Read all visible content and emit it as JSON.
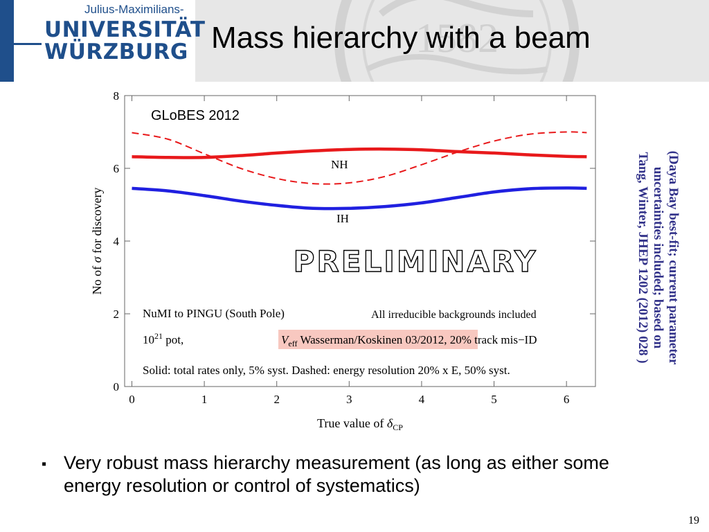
{
  "header": {
    "logo": {
      "top_text": "Julius-Maximilians-",
      "line1": "UNIVERSITÄT",
      "line2": "WÜRZBURG"
    },
    "seal_text": "1582",
    "title": "Mass hierarchy with a beam"
  },
  "plot": {
    "globes_label": "GLoBES 2012",
    "nh_label": "NH",
    "ih_label": "IH",
    "preliminary": "PRELIMINARY",
    "setup": "NuMI to PINGU (South Pole)",
    "backgrounds": "All irreducible backgrounds included",
    "pot_prefix": "10",
    "pot_exp": "21",
    "pot_suffix": " pot,",
    "veff_v": "V",
    "veff_sub": "eff",
    "veff_text": " Wasserman/Koskinen 03/2012,",
    "mis_id": " 20% track mis−ID",
    "solid_dashed": "Solid: total rates only, 5% syst. Dashed: energy resolution 20% x E, 50% syst.",
    "xlabel_prefix": "True value of ",
    "xlabel_symbol": "δ",
    "xlabel_sub": "CP",
    "ylabel_prefix": "No of ",
    "ylabel_symbol": "σ",
    "ylabel_suffix": " for discovery",
    "colors": {
      "nh": "#e8191b",
      "ih": "#2020e0",
      "highlight": "#f8c8c0"
    }
  },
  "chart_data": {
    "type": "line",
    "xlabel": "True value of δCP",
    "ylabel": "No of σ for discovery",
    "xlim": [
      -0.1,
      6.4
    ],
    "ylim": [
      0,
      8
    ],
    "xticks": [
      0,
      1,
      2,
      3,
      4,
      5,
      6
    ],
    "yticks": [
      0,
      2,
      4,
      6,
      8
    ],
    "x": [
      0,
      0.5,
      1,
      1.5,
      2,
      2.5,
      3,
      3.5,
      4,
      4.5,
      5,
      5.5,
      6,
      6.28
    ],
    "series": [
      {
        "name": "NH",
        "style": "solid",
        "values": [
          6.32,
          6.3,
          6.3,
          6.35,
          6.42,
          6.48,
          6.52,
          6.53,
          6.51,
          6.46,
          6.42,
          6.37,
          6.33,
          6.32
        ]
      },
      {
        "name": "NH",
        "style": "dashed",
        "values": [
          6.98,
          6.8,
          6.4,
          6.0,
          5.72,
          5.58,
          5.6,
          5.78,
          6.1,
          6.45,
          6.75,
          6.94,
          7.0,
          6.98
        ]
      },
      {
        "name": "IH",
        "style": "solid",
        "values": [
          5.45,
          5.38,
          5.25,
          5.1,
          4.98,
          4.9,
          4.9,
          4.95,
          5.05,
          5.2,
          5.35,
          5.44,
          5.46,
          5.45
        ]
      }
    ]
  },
  "side_note": {
    "line1": "(Daya Bay best-fit; current parameter",
    "line2": "uncertainties included; based on",
    "line3": "Tang, Winter, JHEP 1202 (2012) 028 )"
  },
  "bullet": {
    "marker": "▪",
    "text": "Very robust mass hierarchy measurement (as long as either some energy resolution or control of systematics)"
  },
  "page_number": "19"
}
